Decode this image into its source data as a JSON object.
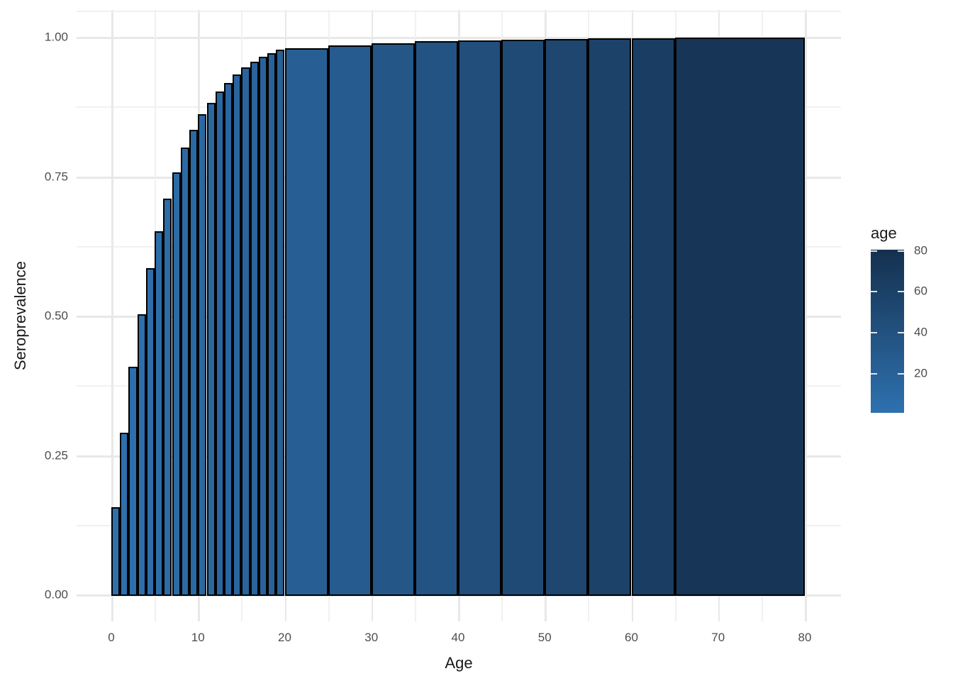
{
  "chart_data": {
    "type": "bar",
    "title": "",
    "xlabel": "Age",
    "ylabel": "Seroprevalence",
    "x_ticks": [
      0,
      10,
      20,
      30,
      40,
      50,
      60,
      70,
      80
    ],
    "x_minor_ticks": [
      5,
      15,
      25,
      35,
      45,
      55,
      65,
      75
    ],
    "y_ticks": [
      0,
      0.25,
      0.5,
      0.75,
      1.0
    ],
    "y_tick_labels": [
      "0.00",
      "0.25",
      "0.50",
      "0.75",
      "1.00"
    ],
    "y_minor_ticks": [
      0.125,
      0.375,
      0.625,
      0.875
    ],
    "xlim": [
      -4,
      84.2
    ],
    "ylim": [
      -0.048,
      1.048
    ],
    "grid": true,
    "bar_border_color": "#000000",
    "bars": [
      {
        "age_from": 0,
        "age_to": 1,
        "value": 0.157
      },
      {
        "age_from": 1,
        "age_to": 2,
        "value": 0.29
      },
      {
        "age_from": 2,
        "age_to": 3,
        "value": 0.408
      },
      {
        "age_from": 3,
        "age_to": 4,
        "value": 0.503
      },
      {
        "age_from": 4,
        "age_to": 5,
        "value": 0.585
      },
      {
        "age_from": 5,
        "age_to": 6,
        "value": 0.652
      },
      {
        "age_from": 6,
        "age_to": 7,
        "value": 0.71
      },
      {
        "age_from": 7,
        "age_to": 8,
        "value": 0.757
      },
      {
        "age_from": 8,
        "age_to": 9,
        "value": 0.802
      },
      {
        "age_from": 9,
        "age_to": 10,
        "value": 0.834
      },
      {
        "age_from": 10,
        "age_to": 11,
        "value": 0.861
      },
      {
        "age_from": 11,
        "age_to": 12,
        "value": 0.882
      },
      {
        "age_from": 12,
        "age_to": 13,
        "value": 0.902
      },
      {
        "age_from": 13,
        "age_to": 14,
        "value": 0.918
      },
      {
        "age_from": 14,
        "age_to": 15,
        "value": 0.932
      },
      {
        "age_from": 15,
        "age_to": 16,
        "value": 0.945
      },
      {
        "age_from": 16,
        "age_to": 17,
        "value": 0.955
      },
      {
        "age_from": 17,
        "age_to": 18,
        "value": 0.964
      },
      {
        "age_from": 18,
        "age_to": 19,
        "value": 0.971
      },
      {
        "age_from": 19,
        "age_to": 20,
        "value": 0.977
      },
      {
        "age_from": 20,
        "age_to": 25,
        "value": 0.98
      },
      {
        "age_from": 25,
        "age_to": 30,
        "value": 0.985
      },
      {
        "age_from": 30,
        "age_to": 35,
        "value": 0.989
      },
      {
        "age_from": 35,
        "age_to": 40,
        "value": 0.992
      },
      {
        "age_from": 40,
        "age_to": 45,
        "value": 0.994
      },
      {
        "age_from": 45,
        "age_to": 50,
        "value": 0.9955
      },
      {
        "age_from": 50,
        "age_to": 55,
        "value": 0.9965
      },
      {
        "age_from": 55,
        "age_to": 60,
        "value": 0.9975
      },
      {
        "age_from": 60,
        "age_to": 65,
        "value": 0.998
      },
      {
        "age_from": 65,
        "age_to": 80,
        "value": 0.999
      }
    ],
    "fill_scale": {
      "by": "age_midpoint",
      "low_color": "#2E71AF",
      "high_color": "#15304E",
      "domain": [
        0,
        80
      ]
    },
    "legend_position": "right"
  },
  "legend": {
    "title": "age",
    "ticks": [
      20,
      40,
      60,
      80
    ],
    "low_color": "#2E71AF",
    "high_color": "#15304E"
  },
  "colors": {
    "background": "#ffffff",
    "grid_major": "#e8e8e8",
    "grid_minor": "#f1f1f1",
    "tick_text": "#4d4d4d",
    "title_text": "#1a1a1a"
  }
}
